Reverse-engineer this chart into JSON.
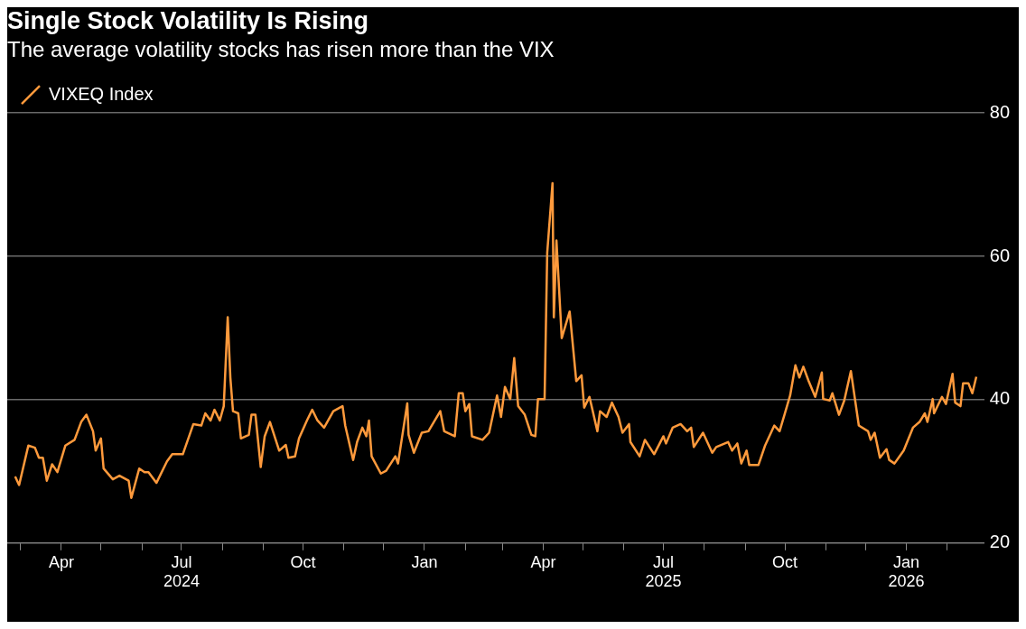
{
  "chart_data": {
    "type": "line",
    "title": "Single Stock Volatility Is Rising",
    "subtitle": "The average volatility stocks has risen more than the VIX",
    "x": [
      "2024-02-26",
      "2024-02-29",
      "2024-03-07",
      "2024-03-12",
      "2024-03-15",
      "2024-03-18",
      "2024-03-21",
      "2024-03-25",
      "2024-03-29",
      "2024-04-04",
      "2024-04-11",
      "2024-04-16",
      "2024-04-20",
      "2024-04-25",
      "2024-04-27",
      "2024-05-01",
      "2024-05-03",
      "2024-05-10",
      "2024-05-15",
      "2024-05-22",
      "2024-05-24",
      "2024-05-30",
      "2024-06-03",
      "2024-06-06",
      "2024-06-12",
      "2024-06-20",
      "2024-06-24",
      "2024-07-02",
      "2024-07-10",
      "2024-07-16",
      "2024-07-19",
      "2024-07-23",
      "2024-07-26",
      "2024-07-30",
      "2024-08-02",
      "2024-08-05",
      "2024-08-07",
      "2024-08-09",
      "2024-08-13",
      "2024-08-15",
      "2024-08-21",
      "2024-08-23",
      "2024-08-26",
      "2024-08-30",
      "2024-09-02",
      "2024-09-06",
      "2024-09-13",
      "2024-09-18",
      "2024-09-20",
      "2024-09-25",
      "2024-09-28",
      "2024-10-04",
      "2024-10-08",
      "2024-10-12",
      "2024-10-17",
      "2024-10-24",
      "2024-10-29",
      "2024-10-31",
      "2024-11-02",
      "2024-11-08",
      "2024-11-11",
      "2024-11-15",
      "2024-11-18",
      "2024-11-20",
      "2024-11-22",
      "2024-11-29",
      "2024-12-03",
      "2024-12-10",
      "2024-12-12",
      "2024-12-19",
      "2024-12-20",
      "2024-12-24",
      "2024-12-30",
      "2025-01-04",
      "2025-01-13",
      "2025-01-16",
      "2025-01-24",
      "2025-01-27",
      "2025-01-30",
      "2025-02-01",
      "2025-02-04",
      "2025-02-06",
      "2025-02-14",
      "2025-02-19",
      "2025-02-25",
      "2025-02-28",
      "2025-03-03",
      "2025-03-07",
      "2025-03-10",
      "2025-03-13",
      "2025-03-18",
      "2025-03-23",
      "2025-03-26",
      "2025-03-28",
      "2025-04-02",
      "2025-04-04",
      "2025-04-08",
      "2025-04-09",
      "2025-04-11",
      "2025-04-15",
      "2025-04-21",
      "2025-04-26",
      "2025-04-30",
      "2025-05-02",
      "2025-05-06",
      "2025-05-12",
      "2025-05-14",
      "2025-05-19",
      "2025-05-23",
      "2025-05-28",
      "2025-05-31",
      "2025-06-05",
      "2025-06-06",
      "2025-06-13",
      "2025-06-17",
      "2025-06-24",
      "2025-07-01",
      "2025-07-03",
      "2025-07-08",
      "2025-07-14",
      "2025-07-19",
      "2025-07-22",
      "2025-07-24",
      "2025-07-31",
      "2025-08-07",
      "2025-08-10",
      "2025-08-19",
      "2025-08-22",
      "2025-08-26",
      "2025-08-29",
      "2025-09-02",
      "2025-09-04",
      "2025-09-11",
      "2025-09-16",
      "2025-09-23",
      "2025-09-27",
      "2025-10-01",
      "2025-10-05",
      "2025-10-09",
      "2025-10-12",
      "2025-10-15",
      "2025-10-19",
      "2025-10-24",
      "2025-10-29",
      "2025-10-30",
      "2025-11-04",
      "2025-11-06",
      "2025-11-11",
      "2025-11-15",
      "2025-11-20",
      "2025-11-26",
      "2025-12-03",
      "2025-12-05",
      "2025-12-08",
      "2025-12-12",
      "2025-12-17",
      "2025-12-19",
      "2025-12-23",
      "2025-12-30",
      "2026-01-06",
      "2026-01-11",
      "2026-01-15",
      "2026-01-17",
      "2026-01-21",
      "2026-01-22",
      "2026-01-28",
      "2026-01-31",
      "2026-02-05",
      "2026-02-07",
      "2026-02-11",
      "2026-02-13",
      "2026-02-17",
      "2026-02-20",
      "2026-02-23"
    ],
    "series": [
      {
        "name": "VIXEQ Index",
        "color": "#ff9a3c",
        "values": [
          29.3,
          28.1,
          33.6,
          33.3,
          31.9,
          31.9,
          28.7,
          31.0,
          29.9,
          33.6,
          34.4,
          36.9,
          37.9,
          35.6,
          32.9,
          34.6,
          30.4,
          28.9,
          29.4,
          28.7,
          26.3,
          30.4,
          29.9,
          29.9,
          28.4,
          31.4,
          32.4,
          32.4,
          36.6,
          36.4,
          38.1,
          37.1,
          38.6,
          37.1,
          39.1,
          51.5,
          43.1,
          38.4,
          38.1,
          34.6,
          35.1,
          37.9,
          37.9,
          30.6,
          34.9,
          36.9,
          32.9,
          33.7,
          31.9,
          32.1,
          34.6,
          37.1,
          38.6,
          37.1,
          36.1,
          38.4,
          38.9,
          39.1,
          36.4,
          31.6,
          34.1,
          36.1,
          34.9,
          37.1,
          32.1,
          29.7,
          30.1,
          32.1,
          31.1,
          39.5,
          35.1,
          32.6,
          35.4,
          35.6,
          38.4,
          35.6,
          34.9,
          40.9,
          40.9,
          38.4,
          39.4,
          34.9,
          34.4,
          35.4,
          40.6,
          37.6,
          41.8,
          40.1,
          45.8,
          39.1,
          37.9,
          35.1,
          34.9,
          40.1,
          40.1,
          60.5,
          70.2,
          51.5,
          62.2,
          48.6,
          52.3,
          42.6,
          43.4,
          38.9,
          40.4,
          35.6,
          38.4,
          37.6,
          39.6,
          37.6,
          35.4,
          36.6,
          34.1,
          32.1,
          34.4,
          32.4,
          34.9,
          33.9,
          36.1,
          36.6,
          35.6,
          36.1,
          33.4,
          35.4,
          32.6,
          33.4,
          34.1,
          32.9,
          33.9,
          31.1,
          32.9,
          30.9,
          30.9,
          33.6,
          36.4,
          35.6,
          38.1,
          40.6,
          44.8,
          43.1,
          44.6,
          42.6,
          40.4,
          43.8,
          40.1,
          39.9,
          40.9,
          37.9,
          39.9,
          44.0,
          36.4,
          35.6,
          34.4,
          35.4,
          31.9,
          33.1,
          31.6,
          31.1,
          32.9,
          36.1,
          36.9,
          38.1,
          36.9,
          40.1,
          38.1,
          40.4,
          39.4,
          43.6,
          39.6,
          39.1,
          42.3,
          42.3,
          40.9,
          43.2
        ]
      }
    ],
    "xlim": [
      "2024-02-20",
      "2026-03-01"
    ],
    "xticks": [
      {
        "value": "2024-03-01",
        "label": null
      },
      {
        "value": "2024-04-01",
        "label": "Apr"
      },
      {
        "value": "2024-05-01",
        "label": null
      },
      {
        "value": "2024-06-01",
        "label": null
      },
      {
        "value": "2024-07-01",
        "label": "Jul\n2024"
      },
      {
        "value": "2024-08-01",
        "label": null
      },
      {
        "value": "2024-09-01",
        "label": null
      },
      {
        "value": "2024-10-01",
        "label": "Oct"
      },
      {
        "value": "2024-11-01",
        "label": null
      },
      {
        "value": "2024-12-01",
        "label": null
      },
      {
        "value": "2025-01-01",
        "label": "Jan"
      },
      {
        "value": "2025-02-01",
        "label": null
      },
      {
        "value": "2025-03-01",
        "label": null
      },
      {
        "value": "2025-04-01",
        "label": "Apr"
      },
      {
        "value": "2025-05-01",
        "label": null
      },
      {
        "value": "2025-06-01",
        "label": null
      },
      {
        "value": "2025-07-01",
        "label": "Jul\n2025"
      },
      {
        "value": "2025-08-01",
        "label": null
      },
      {
        "value": "2025-09-01",
        "label": null
      },
      {
        "value": "2025-10-01",
        "label": "Oct"
      },
      {
        "value": "2025-11-01",
        "label": null
      },
      {
        "value": "2025-12-01",
        "label": null
      },
      {
        "value": "2026-01-01",
        "label": "Jan\n2026"
      },
      {
        "value": "2026-02-01",
        "label": null
      }
    ],
    "ylim": [
      20,
      80
    ],
    "yticks": [
      20,
      40,
      60,
      80
    ],
    "grid": "y",
    "legend": "top left"
  }
}
